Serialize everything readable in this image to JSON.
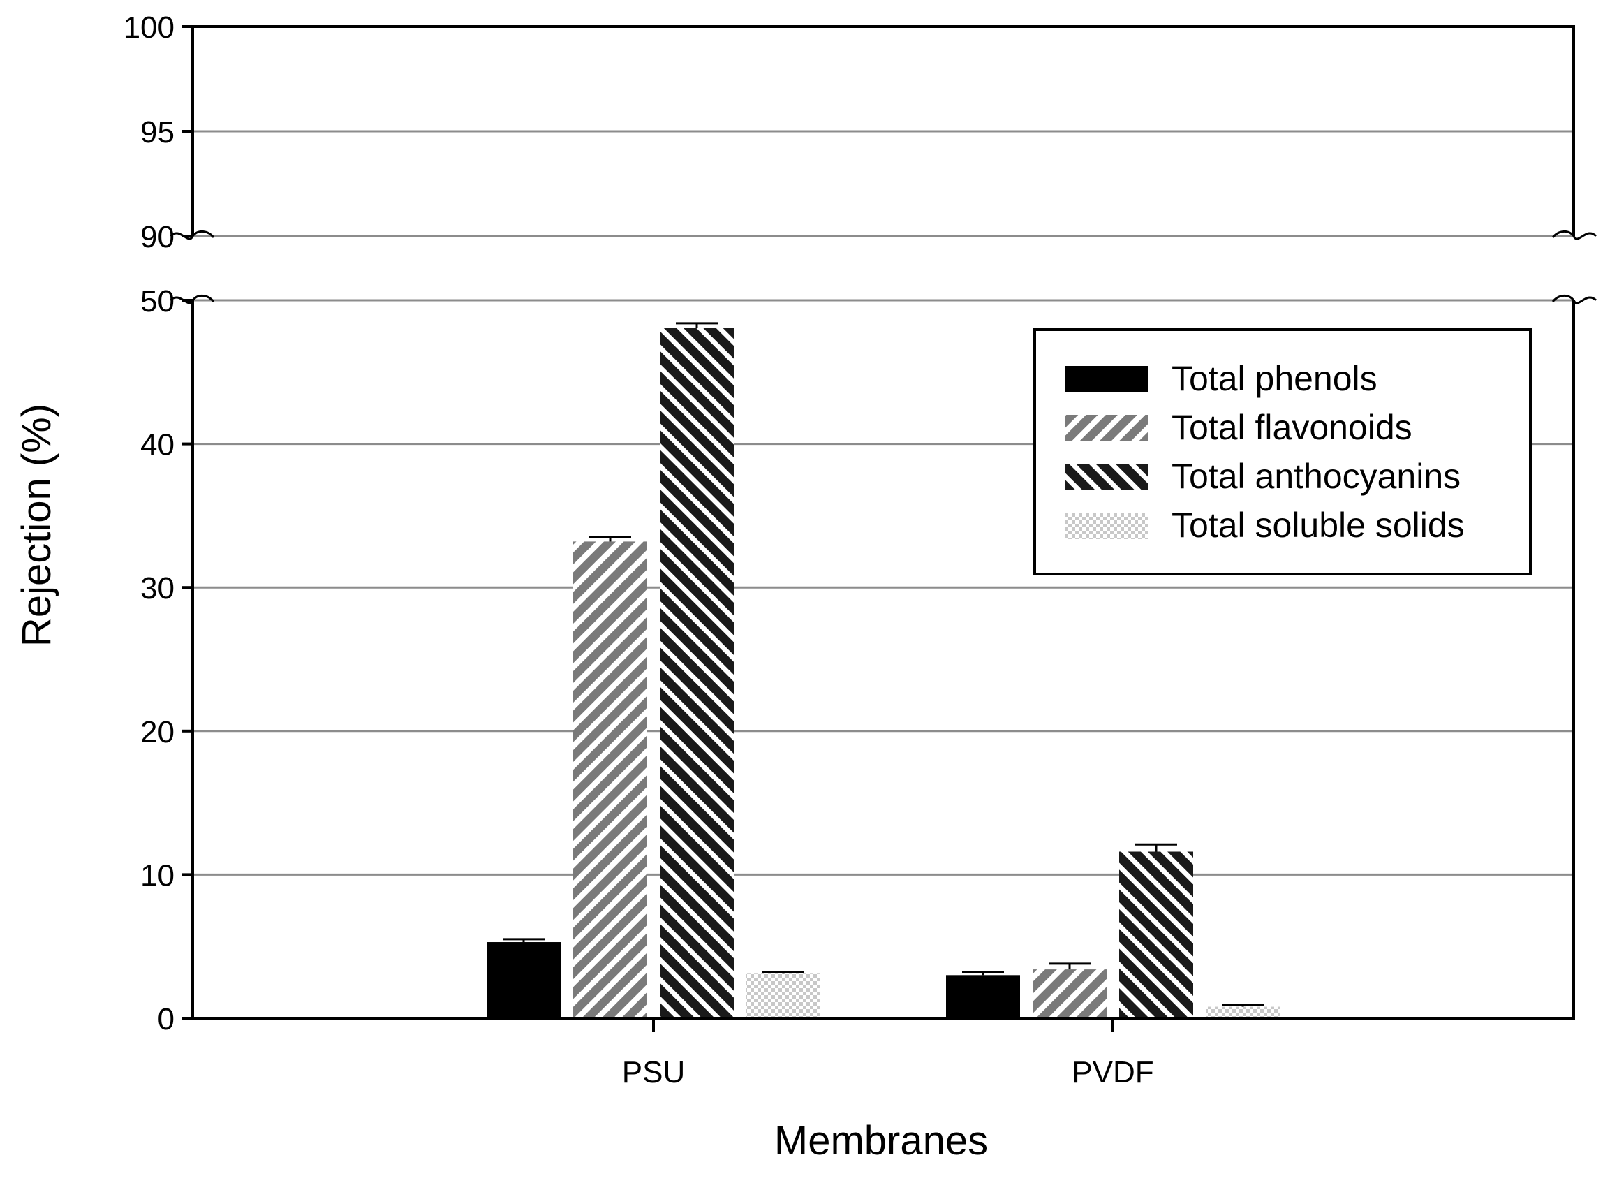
{
  "chart_data": {
    "type": "bar",
    "xlabel": "Membranes",
    "ylabel": "Rejection (%)",
    "categories": [
      "PSU",
      "PVDF"
    ],
    "series": [
      {
        "name": "Total phenols",
        "values": [
          5.3,
          3.0
        ],
        "errors": [
          0.2,
          0.2
        ],
        "pattern": "solid",
        "color": "#000000"
      },
      {
        "name": "Total flavonoids",
        "values": [
          33.2,
          3.4
        ],
        "errors": [
          0.3,
          0.4
        ],
        "pattern": "diagonal-gray",
        "color": "#7a7a7a"
      },
      {
        "name": "Total anthocyanins",
        "values": [
          48.1,
          11.6
        ],
        "errors": [
          0.3,
          0.5
        ],
        "pattern": "diagonal-dark",
        "color": "#1a1a1a"
      },
      {
        "name": "Total soluble solids",
        "values": [
          3.1,
          0.8
        ],
        "errors": [
          0.1,
          0.1
        ],
        "pattern": "crosshatch-light",
        "color": "#c8c8c8"
      }
    ],
    "ylim": [
      0,
      100
    ],
    "y_axis_break": [
      50,
      90
    ],
    "yticks_lower": [
      0,
      10,
      20,
      30,
      40,
      50
    ],
    "yticks_upper": [
      90,
      95,
      100
    ],
    "ytick_labels_lower": [
      "0",
      "10",
      "20",
      "30",
      "40",
      "50"
    ],
    "ytick_labels_upper": [
      "90",
      "95",
      "100"
    ],
    "grid": true,
    "legend_position": "top-right",
    "error_bars": true
  }
}
